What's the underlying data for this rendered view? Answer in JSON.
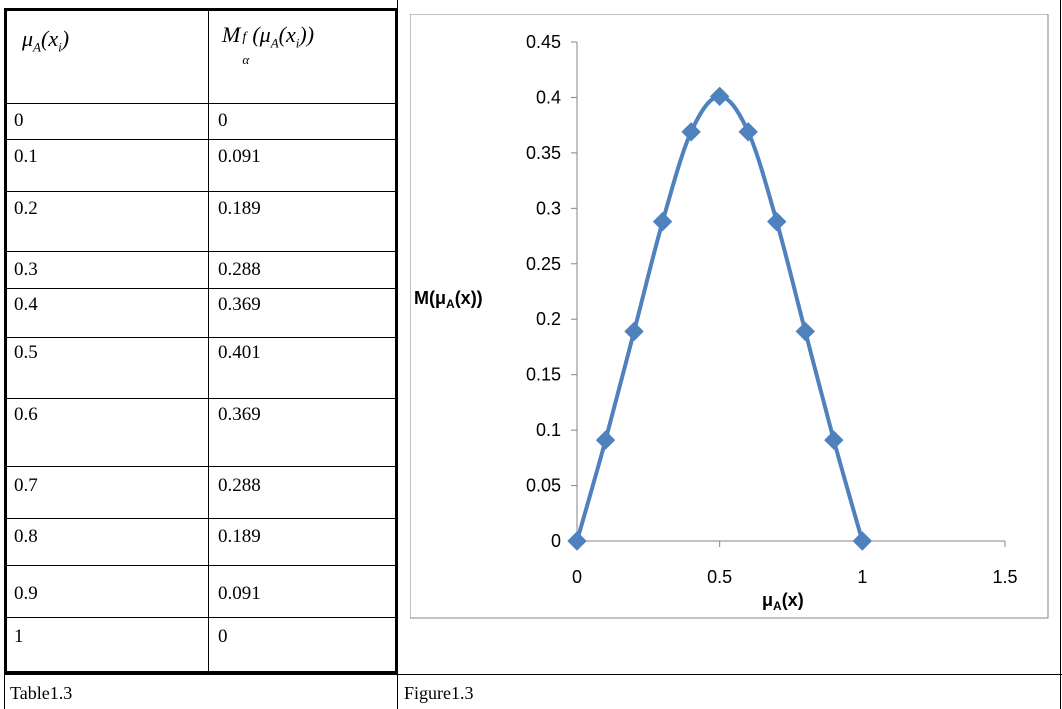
{
  "table": {
    "header": {
      "col1": {
        "sym": "μ",
        "sub": "A",
        "rest": "(x",
        "sub2": "i",
        "close": ")"
      },
      "col2": {
        "sym": "M",
        "sup": "f",
        "sub": "α",
        "mid": "(μ",
        "sub2": "A",
        "rest": "(x",
        "sub3": "i",
        "close": "))"
      }
    },
    "rows": [
      {
        "x": "0",
        "m": "0"
      },
      {
        "x": "0.1",
        "m": "0.091"
      },
      {
        "x": "0.2",
        "m": "0.189"
      },
      {
        "x": "0.3",
        "m": "0.288"
      },
      {
        "x": "0.4",
        "m": "0.369"
      },
      {
        "x": "0.5",
        "m": "0.401"
      },
      {
        "x": "0.6",
        "m": "0.369"
      },
      {
        "x": "0.7",
        "m": "0.288"
      },
      {
        "x": "0.8",
        "m": "0.189"
      },
      {
        "x": "0.9",
        "m": "0.091"
      },
      {
        "x": "1",
        "m": "0"
      }
    ]
  },
  "captions": {
    "table": "Table1.3",
    "figure": "Figure1.3"
  },
  "chart_data": {
    "type": "line",
    "x": [
      0,
      0.1,
      0.2,
      0.3,
      0.4,
      0.5,
      0.6,
      0.7,
      0.8,
      0.9,
      1
    ],
    "series": [
      {
        "values": [
          0,
          0.091,
          0.189,
          0.288,
          0.369,
          0.401,
          0.369,
          0.288,
          0.189,
          0.091,
          0
        ]
      }
    ],
    "xlabel": {
      "main": "μ",
      "sub": "A",
      "rest": "(x)"
    },
    "ylabel": {
      "main": "M(μ",
      "sub": "A",
      "rest": "(x))"
    },
    "xlim": [
      0,
      1.5
    ],
    "ylim": [
      0,
      0.45
    ],
    "xticks": [
      "0",
      "0.5",
      "1",
      "1.5"
    ],
    "yticks": [
      "0",
      "0.05",
      "0.1",
      "0.15",
      "0.2",
      "0.25",
      "0.3",
      "0.35",
      "0.4",
      "0.45"
    ],
    "line_color": "#4f81bd",
    "marker": "diamond",
    "grid": false,
    "legend": "none"
  }
}
